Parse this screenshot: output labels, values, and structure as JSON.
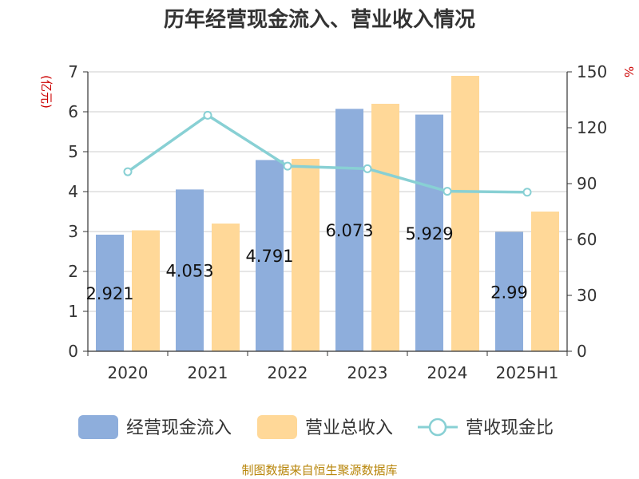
{
  "chart_data": {
    "type": "bar",
    "title": "历年经营现金流入、营业收入情况",
    "categories": [
      "2020",
      "2021",
      "2022",
      "2023",
      "2024",
      "2025H1"
    ],
    "left_axis": {
      "unit": "(亿元)",
      "ylim": [
        0,
        7
      ],
      "ticks": [
        "0",
        "1",
        "2",
        "3",
        "4",
        "5",
        "6",
        "7"
      ]
    },
    "right_axis": {
      "unit": "%",
      "ylim": [
        0,
        150
      ],
      "ticks": [
        "0",
        "30",
        "60",
        "90",
        "120",
        "150"
      ]
    },
    "series": [
      {
        "name": "经营现金流入",
        "type": "bar",
        "axis": "left",
        "color": "#8eaedc",
        "values": [
          2.921,
          4.053,
          4.791,
          6.073,
          5.929,
          2.99
        ],
        "labels": [
          "2.921",
          "4.053",
          "4.791",
          "6.073",
          "5.929",
          "2.99"
        ]
      },
      {
        "name": "营业总收入",
        "type": "bar",
        "axis": "left",
        "color": "#ffd898",
        "values": [
          3.03,
          3.2,
          4.82,
          6.2,
          6.9,
          3.5
        ]
      },
      {
        "name": "营收现金比",
        "type": "line",
        "axis": "right",
        "color": "#88d0d4",
        "values": [
          96.4,
          126.7,
          99.4,
          98.0,
          85.9,
          85.4
        ]
      }
    ],
    "grid": true,
    "legend_position": "bottom"
  },
  "source_text": "制图数据来自恒生聚源数据库"
}
